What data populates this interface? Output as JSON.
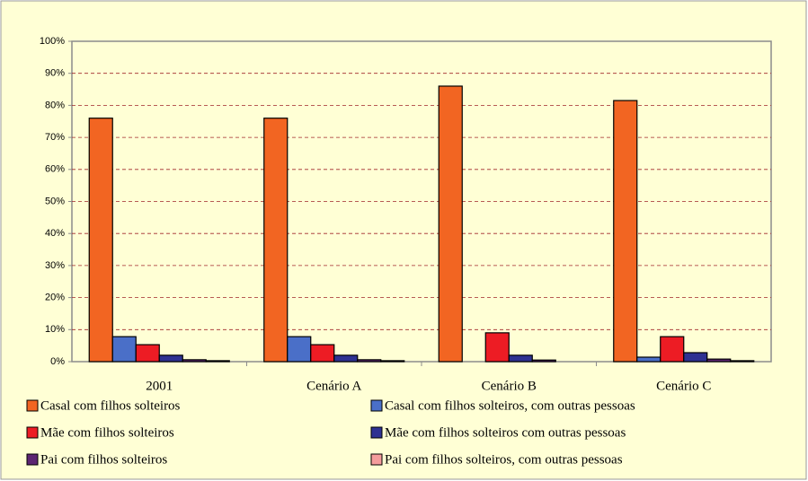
{
  "chart_data": {
    "type": "bar",
    "categories": [
      "2001",
      "Cenário A",
      "Cenário B",
      "Cenário C"
    ],
    "series": [
      {
        "name": "Casal com filhos solteiros",
        "color": "#f26522",
        "values": [
          76,
          76,
          86,
          81.5
        ]
      },
      {
        "name": "Casal com filhos solteiros, com outras pessoas",
        "color": "#4a6fc8",
        "values": [
          7.8,
          7.8,
          0,
          1.4
        ]
      },
      {
        "name": "Mãe com filhos solteiros",
        "color": "#ed1c24",
        "values": [
          5.3,
          5.3,
          9,
          7.8
        ]
      },
      {
        "name": "Mãe com filhos solteiros com outras pessoas",
        "color": "#2e3192",
        "values": [
          2,
          2,
          2,
          2.8
        ]
      },
      {
        "name": "Pai com filhos solteiros",
        "color": "#5c2472",
        "values": [
          0.6,
          0.6,
          0.5,
          0.8
        ]
      },
      {
        "name": "Pai com filhos solteiros, com outras pessoas",
        "color": "#f49c9c",
        "values": [
          0.3,
          0.3,
          0,
          0.3
        ]
      }
    ],
    "ylim": [
      0,
      100
    ],
    "yticks": [
      {
        "value": 0,
        "label": "0%"
      },
      {
        "value": 10,
        "label": "10%"
      },
      {
        "value": 20,
        "label": "20%"
      },
      {
        "value": 30,
        "label": "30%"
      },
      {
        "value": 40,
        "label": "40%"
      },
      {
        "value": 50,
        "label": "50%"
      },
      {
        "value": 60,
        "label": "60%"
      },
      {
        "value": 70,
        "label": "70%"
      },
      {
        "value": 80,
        "label": "80%"
      },
      {
        "value": 90,
        "label": "90%"
      },
      {
        "value": 100,
        "label": "100%"
      }
    ],
    "grid": true
  }
}
